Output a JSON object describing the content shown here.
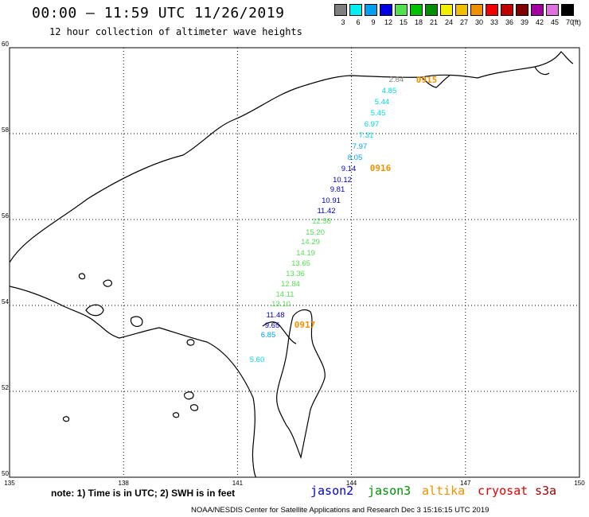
{
  "header": {
    "title": "00:00 – 11:59 UTC 11/26/2019",
    "subtitle": "12 hour collection of altimeter wave heights"
  },
  "colorbar": {
    "unit": "(ft)",
    "bins": [
      {
        "label": "3",
        "color": "#7f7f7f"
      },
      {
        "label": "6",
        "color": "#00f0f0"
      },
      {
        "label": "9",
        "color": "#00a0f0"
      },
      {
        "label": "12",
        "color": "#0000e0"
      },
      {
        "label": "15",
        "color": "#50e050"
      },
      {
        "label": "18",
        "color": "#00c000"
      },
      {
        "label": "21",
        "color": "#009000"
      },
      {
        "label": "24",
        "color": "#f0f000"
      },
      {
        "label": "27",
        "color": "#f0c000"
      },
      {
        "label": "30",
        "color": "#f09000"
      },
      {
        "label": "33",
        "color": "#f00000"
      },
      {
        "label": "36",
        "color": "#c00000"
      },
      {
        "label": "39",
        "color": "#800000"
      },
      {
        "label": "42",
        "color": "#a000a0"
      },
      {
        "label": "45",
        "color": "#e070e0"
      },
      {
        "label": "70",
        "color": "#000000"
      }
    ]
  },
  "map": {
    "lon_range": [
      135,
      150
    ],
    "lat_range": [
      50,
      60
    ],
    "lon_ticks": [
      "135",
      "138",
      "141",
      "144",
      "147",
      "150"
    ],
    "lat_ticks": [
      "60",
      "58",
      "56",
      "54",
      "52",
      "50"
    ],
    "grid": "dotted",
    "track": [
      {
        "value": "2.84",
        "color": "#7f7f7f"
      },
      {
        "value": "4.85",
        "color": "#00d8d8"
      },
      {
        "value": "5.44",
        "color": "#00d8d8"
      },
      {
        "value": "5.45",
        "color": "#00d8d8"
      },
      {
        "value": "6.97",
        "color": "#00d8d8"
      },
      {
        "value": "7.31",
        "color": "#00d8d8"
      },
      {
        "value": "7.97",
        "color": "#00a0f0"
      },
      {
        "value": "8.05",
        "color": "#00a0f0"
      },
      {
        "value": "9.14",
        "color": "#0000c8"
      },
      {
        "value": "10.12",
        "color": "#0000c8"
      },
      {
        "value": "9.81",
        "color": "#0000c8"
      },
      {
        "value": "10.91",
        "color": "#0000c8"
      },
      {
        "value": "11.42",
        "color": "#0000c8"
      },
      {
        "value": "12.58",
        "color": "#55dd55"
      },
      {
        "value": "15.20",
        "color": "#55dd55"
      },
      {
        "value": "14.29",
        "color": "#55dd55"
      },
      {
        "value": "14.19",
        "color": "#55dd55"
      },
      {
        "value": "13.65",
        "color": "#55dd55"
      },
      {
        "value": "13.36",
        "color": "#55dd55"
      },
      {
        "value": "12.84",
        "color": "#55dd55"
      },
      {
        "value": "14.11",
        "color": "#55dd55"
      },
      {
        "value": "13.10",
        "color": "#55dd55"
      },
      {
        "value": "11.48",
        "color": "#0000c8"
      },
      {
        "value": "9.65",
        "color": "#0000c8"
      },
      {
        "value": "6.85",
        "color": "#00a0f0"
      },
      {
        "value": "5.60",
        "color": "#00d8d8"
      }
    ],
    "time_labels": [
      "0915",
      "0916",
      "0917"
    ]
  },
  "footer": {
    "note": "note:  1) Time is in UTC;  2) SWH is in feet",
    "credit": "NOAA/NESDIS Center for Satellite Applications and Research     Dec  3 15:16:15 UTC 2019",
    "satellites": [
      {
        "name": "jason2",
        "color": "#0000d0"
      },
      {
        "name": "jason3",
        "color": "#009000"
      },
      {
        "name": "altika",
        "color": "#f09000"
      },
      {
        "name": "cryosat",
        "color": "#e00000"
      },
      {
        "name": "s3a",
        "color": "#a00000"
      }
    ]
  }
}
